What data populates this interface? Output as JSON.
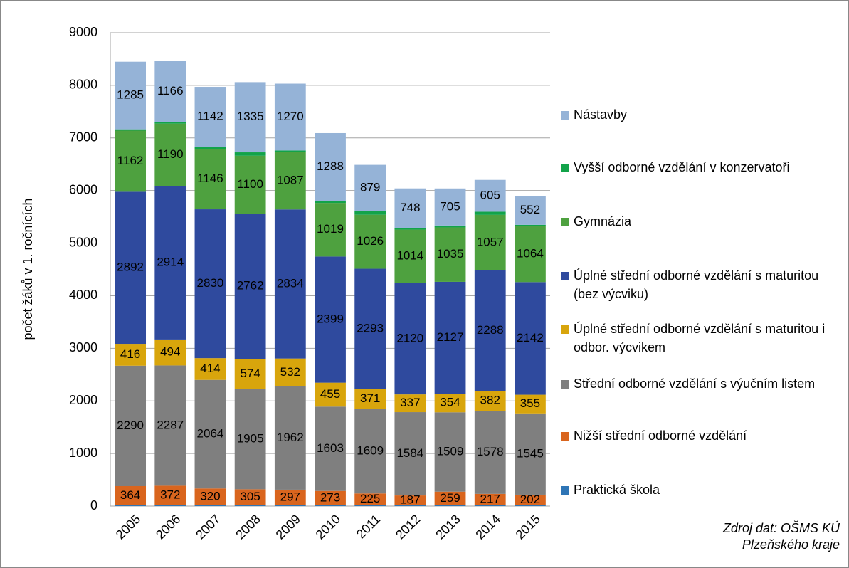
{
  "chart_data": {
    "type": "stacked_bar",
    "y_label": "počet žáků v 1. ročnících",
    "source": [
      "Zdroj dat: OŠMS KÚ",
      "Plzeňského kraje"
    ],
    "categories": [
      "2005",
      "2006",
      "2007",
      "2008",
      "2009",
      "2010",
      "2011",
      "2012",
      "2013",
      "2014",
      "2015"
    ],
    "ylim": [
      0,
      9000
    ],
    "yticks": [
      0,
      1000,
      2000,
      3000,
      4000,
      5000,
      6000,
      7000,
      8000,
      9000
    ],
    "grid": true,
    "series": [
      {
        "name": "Praktická škola",
        "color": "#2e75b6",
        "data_labels": false,
        "values": [
          15,
          15,
          15,
          15,
          15,
          15,
          15,
          15,
          15,
          15,
          15
        ]
      },
      {
        "name": "Nižší střední odborné vzdělání",
        "color": "#d9651e",
        "data_labels": true,
        "values": [
          364,
          372,
          320,
          305,
          297,
          273,
          225,
          187,
          259,
          217,
          202
        ]
      },
      {
        "name": "Střední odborné vzdělání s výučním listem",
        "color": "#7f7f7f",
        "data_labels": true,
        "values": [
          2290,
          2287,
          2064,
          1905,
          1962,
          1603,
          1609,
          1584,
          1509,
          1578,
          1545
        ]
      },
      {
        "name": "Úplné střední odborné vzdělání s maturitou i odbor. výcvikem",
        "color": "#d8a50c",
        "data_labels": true,
        "values": [
          416,
          494,
          414,
          574,
          532,
          455,
          371,
          337,
          354,
          382,
          355
        ]
      },
      {
        "name": "Úplné střední odborné vzdělání s maturitou (bez výcviku)",
        "color": "#2f4a9e",
        "data_labels": true,
        "values": [
          2892,
          2914,
          2830,
          2762,
          2834,
          2399,
          2293,
          2120,
          2127,
          2288,
          2142
        ]
      },
      {
        "name": "Gymnázia",
        "color": "#4ea13f",
        "data_labels": true,
        "values": [
          1162,
          1190,
          1146,
          1100,
          1087,
          1019,
          1026,
          1014,
          1035,
          1057,
          1064
        ]
      },
      {
        "name": "Vyšší odborné vzdělání v konzervatoři",
        "color": "#12a34a",
        "data_labels": false,
        "values": [
          25,
          30,
          40,
          65,
          35,
          40,
          70,
          35,
          35,
          60,
          25
        ]
      },
      {
        "name": "Nástavby",
        "color": "#95b3d7",
        "data_labels": true,
        "values": [
          1285,
          1166,
          1142,
          1335,
          1270,
          1288,
          879,
          748,
          705,
          605,
          552
        ]
      }
    ]
  }
}
